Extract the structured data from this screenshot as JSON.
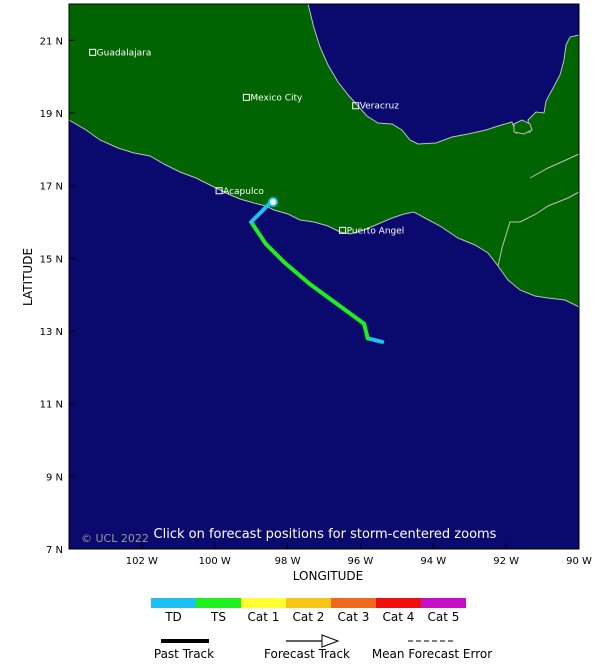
{
  "map": {
    "lon_range": [
      -104,
      -90
    ],
    "lat_range": [
      7,
      22
    ],
    "y_ticks": [
      "21 N",
      "19 N",
      "17 N",
      "15 N",
      "13 N",
      "11 N",
      "9 N",
      "7 N"
    ],
    "x_ticks": [
      "102 W",
      "100 W",
      "98 W",
      "96 W",
      "94 W",
      "92 W",
      "90 W"
    ],
    "xlabel": "LONGITUDE",
    "ylabel": "LATITUDE",
    "copyright": "© UCL 2022",
    "hint": "Click on forecast positions for storm-centered zooms",
    "colors": {
      "ocean": "#0a0a6e",
      "land": "#006400",
      "coast": "#bfbfbf"
    },
    "cities": [
      {
        "name": "Guadalajara",
        "lon": -103.35,
        "lat": 20.67
      },
      {
        "name": "Mexico City",
        "lon": -99.13,
        "lat": 19.43
      },
      {
        "name": "Veracruz",
        "lon": -96.13,
        "lat": 19.2
      },
      {
        "name": "Acapulco",
        "lon": -99.88,
        "lat": 16.86
      },
      {
        "name": "Puerto Angel",
        "lon": -96.49,
        "lat": 15.77
      }
    ]
  },
  "storm_track": {
    "points": [
      {
        "lon": -95.4,
        "lat": 12.7,
        "cat": "TD"
      },
      {
        "lon": -95.8,
        "lat": 12.8,
        "cat": "TD"
      },
      {
        "lon": -95.9,
        "lat": 13.2,
        "cat": "TS"
      },
      {
        "lon": -97.4,
        "lat": 14.3,
        "cat": "TS"
      },
      {
        "lon": -98.1,
        "lat": 14.9,
        "cat": "TS"
      },
      {
        "lon": -98.6,
        "lat": 15.4,
        "cat": "TS"
      },
      {
        "lon": -99.0,
        "lat": 16.0,
        "cat": "TS"
      },
      {
        "lon": -98.5,
        "lat": 16.5,
        "cat": "TD"
      }
    ],
    "end_marker": {
      "lon": -98.4,
      "lat": 16.55
    }
  },
  "legend": {
    "categories": [
      {
        "label": "TD",
        "color": "#1fbfef"
      },
      {
        "label": "TS",
        "color": "#1fef1f"
      },
      {
        "label": "Cat 1",
        "color": "#ffff33"
      },
      {
        "label": "Cat 2",
        "color": "#f5c518"
      },
      {
        "label": "Cat 3",
        "color": "#ef6a1f"
      },
      {
        "label": "Cat 4",
        "color": "#ef0f0f"
      },
      {
        "label": "Cat 5",
        "color": "#c40fc4"
      }
    ],
    "past_track": "Past Track",
    "forecast_track": "Forecast Track",
    "mean_error": "Mean Forecast Error"
  }
}
